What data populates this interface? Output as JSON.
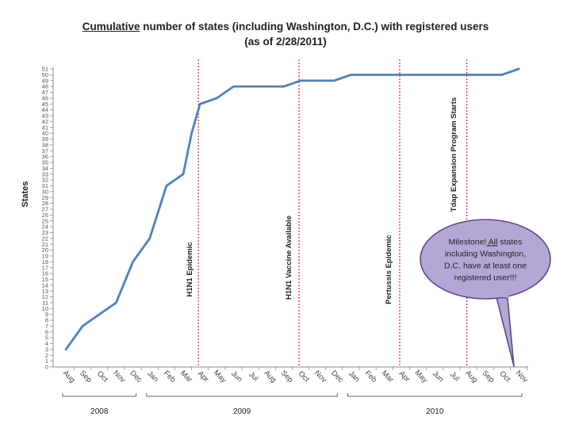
{
  "title": {
    "underlined": "Cumulative",
    "rest": " number of states (including Washington, D.C.) with registered users",
    "line2": "(as of 2/28/2011)"
  },
  "chart_data": {
    "type": "line",
    "title": "Cumulative number of states (including Washington, D.C.) with registered users (as of 2/28/2011)",
    "ylabel": "States",
    "ylim": [
      0,
      51
    ],
    "yticks": [
      0,
      1,
      2,
      3,
      4,
      5,
      6,
      7,
      8,
      9,
      10,
      11,
      12,
      13,
      14,
      15,
      16,
      17,
      18,
      19,
      20,
      21,
      22,
      23,
      24,
      25,
      26,
      27,
      28,
      29,
      30,
      31,
      32,
      33,
      34,
      35,
      36,
      37,
      38,
      39,
      40,
      41,
      42,
      43,
      44,
      45,
      46,
      47,
      48,
      49,
      50,
      51
    ],
    "months": [
      "Aug",
      "Sep",
      "Oct",
      "Nov",
      "Dec",
      "Jan",
      "Feb",
      "Mar",
      "Apr",
      "May",
      "Jun",
      "Jul",
      "Aug",
      "Sep",
      "Oct",
      "Nov",
      "Dec",
      "Jan",
      "Feb",
      "Mar",
      "Apr",
      "May",
      "Jun",
      "Jul",
      "Aug",
      "Sep",
      "Oct",
      "Nov"
    ],
    "year_groups": [
      {
        "label": "2008",
        "from": 0,
        "to": 4
      },
      {
        "label": "2009",
        "from": 5,
        "to": 16
      },
      {
        "label": "2010",
        "from": 17,
        "to": 27
      }
    ],
    "series": [
      {
        "color": "#4f81bd",
        "x": [
          0,
          1,
          2,
          3,
          4,
          5,
          6,
          7,
          7.5,
          8,
          8.5,
          9,
          10,
          11,
          12,
          13,
          13.5,
          14,
          15,
          16,
          17,
          18,
          19,
          20,
          21,
          22,
          23,
          24,
          25,
          26,
          27
        ],
        "y": [
          3,
          7,
          9,
          11,
          18,
          22,
          31,
          33,
          40,
          45,
          45.5,
          46,
          48,
          48,
          48,
          48,
          48.5,
          49,
          49,
          49,
          50,
          50,
          50,
          50,
          50,
          50,
          50,
          50,
          50,
          50,
          51
        ]
      }
    ],
    "events": [
      {
        "label": "H1N1 Epidemic",
        "month_index": 8
      },
      {
        "label": "H1N1 Vaccine Available",
        "month_index": 14
      },
      {
        "label": "Pertussis Epidemic",
        "month_index": 20
      },
      {
        "label": "Tdap Expansion Program Starts",
        "month_index": 24
      }
    ],
    "callout": "Milestone! All states including Washington, D.C. have at least one registered user!!!",
    "callout_underlined": "All",
    "grid": false,
    "event_line_color": "#d9282e",
    "callout_fill": "#b4a7d6",
    "callout_border": "#5b4a8a"
  }
}
